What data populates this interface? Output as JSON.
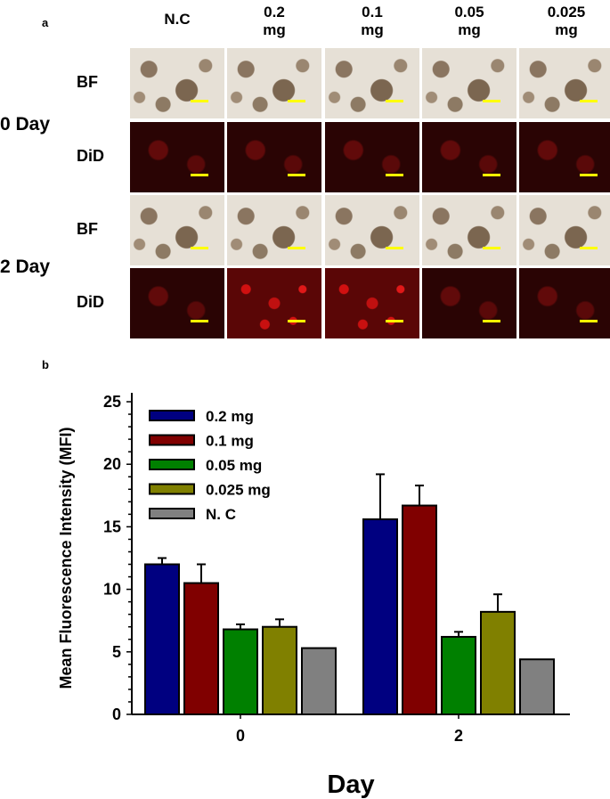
{
  "panel_a": {
    "label": "a",
    "columns": [
      "N.C",
      "0.2\nmg",
      "0.1\nmg",
      "0.05\nmg",
      "0.025\nmg"
    ],
    "rows": [
      "BF",
      "DiD",
      "BF",
      "DiD"
    ],
    "days": [
      "0 Day",
      "2 Day"
    ]
  },
  "panel_b": {
    "label": "b"
  },
  "chart_data": {
    "type": "bar",
    "xlabel": "Day",
    "ylabel": "Mean Fluorescence Intensity (MFI)",
    "categories": [
      "0",
      "2"
    ],
    "ylim": [
      0,
      25
    ],
    "yticks": [
      0,
      5,
      10,
      15,
      20,
      25
    ],
    "grid": false,
    "legend_position": "top-left",
    "series": [
      {
        "name": "0.2 mg",
        "color": "#000080",
        "values": [
          12.0,
          15.6
        ],
        "error": [
          0.5,
          3.6
        ]
      },
      {
        "name": "0.1 mg",
        "color": "#800000",
        "values": [
          10.5,
          16.7
        ],
        "error": [
          1.5,
          1.6
        ]
      },
      {
        "name": "0.05 mg",
        "color": "#008000",
        "values": [
          6.8,
          6.2
        ],
        "error": [
          0.4,
          0.4
        ]
      },
      {
        "name": "0.025 mg",
        "color": "#808000",
        "values": [
          7.0,
          8.2
        ],
        "error": [
          0.6,
          1.4
        ]
      },
      {
        "name": "N. C",
        "color": "#808080",
        "values": [
          5.3,
          4.4
        ],
        "error": [
          0,
          0
        ]
      }
    ]
  }
}
